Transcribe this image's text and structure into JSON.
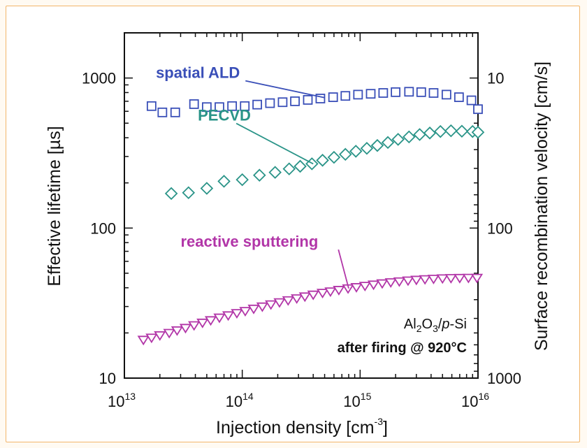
{
  "chart_data": {
    "type": "scatter",
    "x_axis": {
      "label_prefix": "Injection density [cm",
      "label_sup": "-3",
      "label_suffix": "]",
      "scale": "log",
      "xlim": [
        10000000000000.0,
        1e+16
      ],
      "ticks": [
        {
          "value": 10000000000000.0,
          "base": "10",
          "exp": "13"
        },
        {
          "value": 100000000000000.0,
          "base": "10",
          "exp": "14"
        },
        {
          "value": 1000000000000000.0,
          "base": "10",
          "exp": "15"
        },
        {
          "value": 1e+16,
          "base": "10",
          "exp": "16"
        }
      ]
    },
    "y_left": {
      "label": "Effective lifetime [µs]",
      "scale": "log",
      "ylim": [
        10,
        2000
      ],
      "ticks": [
        {
          "value": 10,
          "label": "10"
        },
        {
          "value": 100,
          "label": "100"
        },
        {
          "value": 1000,
          "label": "1000"
        }
      ]
    },
    "y_right": {
      "label": "Surface recombination velocity [cm/s]",
      "scale": "log (inverse of lifetime)",
      "ticks": [
        {
          "at_lifetime": 1000,
          "label": "10"
        },
        {
          "at_lifetime": 100,
          "label": "100"
        },
        {
          "at_lifetime": 10,
          "label": "1000"
        }
      ]
    },
    "grid": false,
    "series": [
      {
        "name": "spatial ALD",
        "marker": "square",
        "color": "#3a4fb8",
        "x": [
          17000000000000.0,
          21000000000000.0,
          27000000000000.0,
          39000000000000.0,
          50000000000000.0,
          64000000000000.0,
          82000000000000.0,
          105000000000000.0,
          134000000000000.0,
          172000000000000.0,
          220000000000000.0,
          280000000000000.0,
          360000000000000.0,
          460000000000000.0,
          590000000000000.0,
          750000000000000.0,
          960000000000000.0,
          1230000000000000.0,
          1570000000000000.0,
          2000000000000000.0,
          2600000000000000.0,
          3300000000000000.0,
          4200000000000000.0,
          5400000000000000.0,
          6900000000000000.0,
          8800000000000000.0,
          1e+16
        ],
        "y": [
          650,
          590,
          590,
          670,
          640,
          640,
          650,
          650,
          665,
          680,
          690,
          700,
          715,
          730,
          745,
          760,
          775,
          785,
          795,
          805,
          810,
          805,
          795,
          775,
          745,
          710,
          620
        ]
      },
      {
        "name": "PECVD",
        "marker": "diamond",
        "color": "#2a9488",
        "x": [
          25000000000000.0,
          35000000000000.0,
          50000000000000.0,
          70000000000000.0,
          100000000000000.0,
          140000000000000.0,
          190000000000000.0,
          250000000000000.0,
          310000000000000.0,
          390000000000000.0,
          480000000000000.0,
          600000000000000.0,
          750000000000000.0,
          920000000000000.0,
          1140000000000000.0,
          1400000000000000.0,
          1720000000000000.0,
          2100000000000000.0,
          2600000000000000.0,
          3200000000000000.0,
          3900000000000000.0,
          4800000000000000.0,
          5900000000000000.0,
          7300000000000000.0,
          9000000000000000.0,
          1e+16
        ],
        "y": [
          170,
          172,
          184,
          205,
          210,
          225,
          235,
          248,
          258,
          268,
          283,
          296,
          310,
          325,
          340,
          355,
          372,
          390,
          405,
          420,
          430,
          440,
          445,
          442,
          440,
          435
        ]
      },
      {
        "name": "reactive sputtering",
        "marker": "triangle-down",
        "color": "#b236a8",
        "x": [
          14500000000000.0,
          17000000000000.0,
          20000000000000.0,
          24000000000000.0,
          28000000000000.0,
          33000000000000.0,
          39000000000000.0,
          46000000000000.0,
          54000000000000.0,
          64000000000000.0,
          76000000000000.0,
          90000000000000.0,
          106000000000000.0,
          125000000000000.0,
          148000000000000.0,
          175000000000000.0,
          207000000000000.0,
          245000000000000.0,
          290000000000000.0,
          340000000000000.0,
          400000000000000.0,
          480000000000000.0,
          560000000000000.0,
          660000000000000.0,
          790000000000000.0,
          930000000000000.0,
          1100000000000000.0,
          1300000000000000.0,
          1540000000000000.0,
          1820000000000000.0,
          2150000000000000.0,
          2550000000000000.0,
          3000000000000000.0,
          3550000000000000.0,
          4200000000000000.0,
          5000000000000000.0,
          5900000000000000.0,
          7000000000000000.0,
          8300000000000000.0,
          9800000000000000.0
        ],
        "y": [
          18.0,
          18.6,
          19.3,
          20.0,
          20.8,
          21.6,
          22.5,
          23.4,
          24.3,
          25.3,
          26.2,
          27.1,
          28.0,
          29.0,
          30.0,
          31.0,
          32.0,
          33.0,
          34.0,
          35.0,
          36.0,
          37.0,
          37.8,
          38.7,
          39.6,
          40.4,
          41.2,
          42.0,
          42.8,
          43.5,
          44.1,
          44.7,
          45.2,
          45.6,
          45.9,
          46.2,
          46.4,
          46.5,
          46.6,
          46.6
        ]
      }
    ],
    "series_labels": [
      {
        "text": "spatial ALD",
        "color": "#3a4fb8",
        "label_x": 18500000000000.0,
        "label_y": 1000,
        "pointer_x": 500000000000000.0,
        "pointer_y": 740
      },
      {
        "text": "PECVD",
        "color": "#2a9488",
        "label_x": 42000000000000.0,
        "label_y": 520,
        "pointer_x": 400000000000000.0,
        "pointer_y": 268
      },
      {
        "text": "reactive sputtering",
        "color": "#b236a8",
        "label_x": 30000000000000.0,
        "label_y": 75,
        "pointer_x": 800000000000000.0,
        "pointer_y": 39.6
      }
    ],
    "annotations": {
      "line1_prefix": "Al",
      "line1_sub1": "2",
      "line1_mid": "O",
      "line1_sub2": "3",
      "line1_slash": "/",
      "line1_italic": "p",
      "line1_suffix": "-Si",
      "line2": "after firing @ 920°C"
    }
  }
}
